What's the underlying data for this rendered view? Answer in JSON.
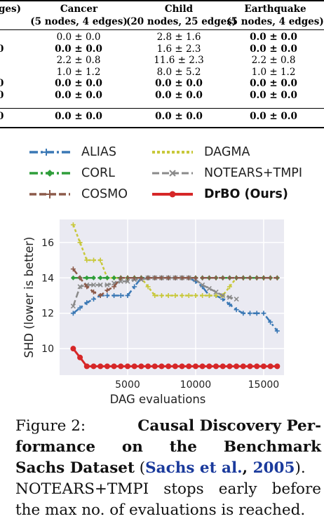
{
  "table": {
    "columns": [
      {
        "name": "Cancer",
        "sub": "(5 nodes, 4 edges)"
      },
      {
        "name": "Child",
        "sub": "(20 nodes, 25 edges)"
      },
      {
        "name": "Earthquake",
        "sub": "(5 nodes, 4 edges)"
      }
    ],
    "first_col_fragment": "edges)",
    "rows": [
      {
        "stub": "",
        "cells": [
          "0.0 ± 0.0",
          "2.8 ± 1.6",
          "0.0 ± 0.0"
        ],
        "bold": [
          false,
          false,
          true
        ]
      },
      {
        "stub": "0",
        "cells": [
          "0.0 ± 0.0",
          "1.6 ± 2.3",
          "0.0 ± 0.0"
        ],
        "bold": [
          true,
          false,
          true
        ]
      },
      {
        "stub": "",
        "cells": [
          "2.2 ± 0.8",
          "11.6 ± 2.3",
          "2.2 ± 0.8"
        ],
        "bold": [
          false,
          false,
          false
        ]
      },
      {
        "stub": "",
        "cells": [
          "1.0 ± 1.2",
          "8.0 ± 5.2",
          "1.0 ± 1.2"
        ],
        "bold": [
          false,
          false,
          false
        ]
      },
      {
        "stub": "0",
        "cells": [
          "0.0 ± 0.0",
          "0.0 ± 0.0",
          "0.0 ± 0.0"
        ],
        "bold": [
          true,
          true,
          true
        ]
      },
      {
        "stub": "0",
        "cells": [
          "0.0 ± 0.0",
          "0.0 ± 0.0",
          "0.0 ± 0.0"
        ],
        "bold": [
          true,
          true,
          true
        ]
      },
      {
        "stub": "0",
        "cells": [
          "0.0 ± 0.0",
          "0.0 ± 0.0",
          "0.0 ± 0.0"
        ],
        "bold": [
          true,
          true,
          true
        ]
      }
    ]
  },
  "legend": {
    "alias": "ALIAS",
    "dagma": "DAGMA",
    "corl": "CORL",
    "notears": "NOTEARS+TMPI",
    "cosmo": "COSMO",
    "drbo": "DrBO (Ours)"
  },
  "chart_data": {
    "type": "line",
    "xlabel": "DAG evaluations",
    "ylabel": "SHD (lower is better)",
    "xlim": [
      0,
      16500
    ],
    "ylim": [
      8.5,
      17.3
    ],
    "xticks": [
      5000,
      10000,
      15000
    ],
    "xtick_labels": [
      "5000",
      "10000",
      "15000"
    ],
    "yticks": [
      10,
      12,
      14,
      16
    ],
    "ytick_labels": [
      "10",
      "12",
      "14",
      "16"
    ],
    "grid": true,
    "series": [
      {
        "name": "ALIAS",
        "color": "#3a78b5",
        "style": "dashdot",
        "marker": "plus",
        "x": [
          1000,
          1500,
          2000,
          2500,
          3000,
          3500,
          4000,
          4500,
          5000,
          5500,
          6000,
          6500,
          7000,
          7500,
          8000,
          8500,
          9000,
          9500,
          10000,
          10500,
          11000,
          11500,
          12000,
          12500,
          13000,
          13500,
          14000,
          14500,
          15000,
          15500,
          16000
        ],
        "y": [
          12,
          12.3,
          12.6,
          12.8,
          13,
          13,
          13,
          13,
          13,
          13.5,
          14,
          14,
          14,
          14,
          14,
          14,
          14,
          14,
          13.8,
          13.5,
          13,
          13,
          12.8,
          12.5,
          12.2,
          12,
          12,
          12,
          12,
          11.5,
          11
        ]
      },
      {
        "name": "DAGMA",
        "color": "#c8c83a",
        "style": "dotted",
        "marker": "plus",
        "x": [
          1000,
          1500,
          2000,
          2500,
          3000,
          3500,
          4000,
          4500,
          5000,
          5500,
          6000,
          6500,
          7000,
          7500,
          8000,
          8500,
          9000,
          9500,
          10000,
          10500,
          11000,
          11500,
          12000,
          12500,
          13000,
          13500,
          14000,
          14500,
          15000,
          15500,
          16000
        ],
        "y": [
          17,
          16,
          15,
          15,
          15,
          14,
          14,
          14,
          14,
          14,
          14,
          13.5,
          13,
          13,
          13,
          13,
          13,
          13,
          13,
          13,
          13,
          13,
          13,
          13.5,
          14,
          14,
          14,
          14,
          14,
          14,
          14
        ]
      },
      {
        "name": "CORL",
        "color": "#2f9e3a",
        "style": "dashdot",
        "marker": "diamond",
        "x": [
          1000,
          1500,
          2000,
          2500,
          3000,
          3500,
          4000,
          4500,
          5000,
          5500,
          6000,
          6500,
          7000,
          7500,
          8000,
          8500,
          9000,
          9500,
          10000,
          10500,
          11000,
          11500,
          12000,
          12500,
          13000,
          13500,
          14000,
          14500,
          15000,
          15500,
          16000
        ],
        "y": [
          14,
          14,
          14,
          14,
          14,
          14,
          14,
          14,
          14,
          14,
          14,
          14,
          14,
          14,
          14,
          14,
          14,
          14,
          14,
          14,
          14,
          14,
          14,
          14,
          14,
          14,
          14,
          14,
          14,
          14,
          14
        ]
      },
      {
        "name": "NOTEARS+TMPI",
        "color": "#8a8a8a",
        "style": "dashed",
        "marker": "x",
        "x": [
          1000,
          1500,
          2000,
          2500,
          3000,
          3500,
          4000,
          4500,
          5000,
          5500,
          6000,
          6500,
          7000,
          7500,
          8000,
          8500,
          9000,
          9500,
          10000,
          10500,
          11000,
          11500,
          12000,
          12500,
          13000
        ],
        "y": [
          12.4,
          13.5,
          13.6,
          13.6,
          13.6,
          13.6,
          13.7,
          13.8,
          13.8,
          13.9,
          13.9,
          14,
          14,
          14,
          14,
          14,
          14,
          14,
          13.9,
          13.6,
          13.4,
          13.2,
          13,
          12.9,
          12.8
        ]
      },
      {
        "name": "COSMO",
        "color": "#8c5a4a",
        "style": "dashed",
        "marker": "plus",
        "x": [
          1000,
          1500,
          2000,
          2500,
          3000,
          3500,
          4000,
          4500,
          5000,
          5500,
          6000,
          6500,
          7000,
          7500,
          8000,
          8500,
          9000,
          9500,
          10000,
          10500,
          11000,
          11500,
          12000,
          12500,
          13000,
          13500,
          14000,
          14500,
          15000,
          15500,
          16000
        ],
        "y": [
          14.5,
          14,
          13.5,
          13.2,
          13,
          13.3,
          13.5,
          14,
          14,
          14,
          14,
          14,
          14,
          14,
          14,
          14,
          14,
          14,
          14,
          14,
          14,
          14,
          14,
          14,
          14,
          14,
          14,
          14,
          14,
          14,
          14
        ]
      },
      {
        "name": "DrBO (Ours)",
        "color": "#d62728",
        "style": "solid",
        "marker": "circle",
        "x": [
          1000,
          1500,
          2000,
          2500,
          3000,
          3500,
          4000,
          4500,
          5000,
          5500,
          6000,
          6500,
          7000,
          7500,
          8000,
          8500,
          9000,
          9500,
          10000,
          10500,
          11000,
          11500,
          12000,
          12500,
          13000,
          13500,
          14000,
          14500,
          15000,
          15500,
          16000
        ],
        "y": [
          10,
          9.5,
          9,
          9,
          9,
          9,
          9,
          9,
          9,
          9,
          9,
          9,
          9,
          9,
          9,
          9,
          9,
          9,
          9,
          9,
          9,
          9,
          9,
          9,
          9,
          9,
          9,
          9,
          9,
          9,
          9
        ]
      }
    ]
  },
  "caption": {
    "line1_a": "Figure 2:",
    "line1_b": "Causal Discovery Per-",
    "line2": [
      "formance",
      "on",
      "the",
      "Benchmark"
    ],
    "line3_a": "Sachs Dataset",
    "line3_paren_open": " (",
    "line3_cite_a": "Sachs et al.",
    "line3_comma": ", ",
    "line3_cite_b": "2005",
    "line3_paren_close": ").",
    "line4": [
      "NOTEARS+TMPI",
      "stops",
      "early",
      "before"
    ],
    "line5": "the max no. of evaluations is reached."
  }
}
